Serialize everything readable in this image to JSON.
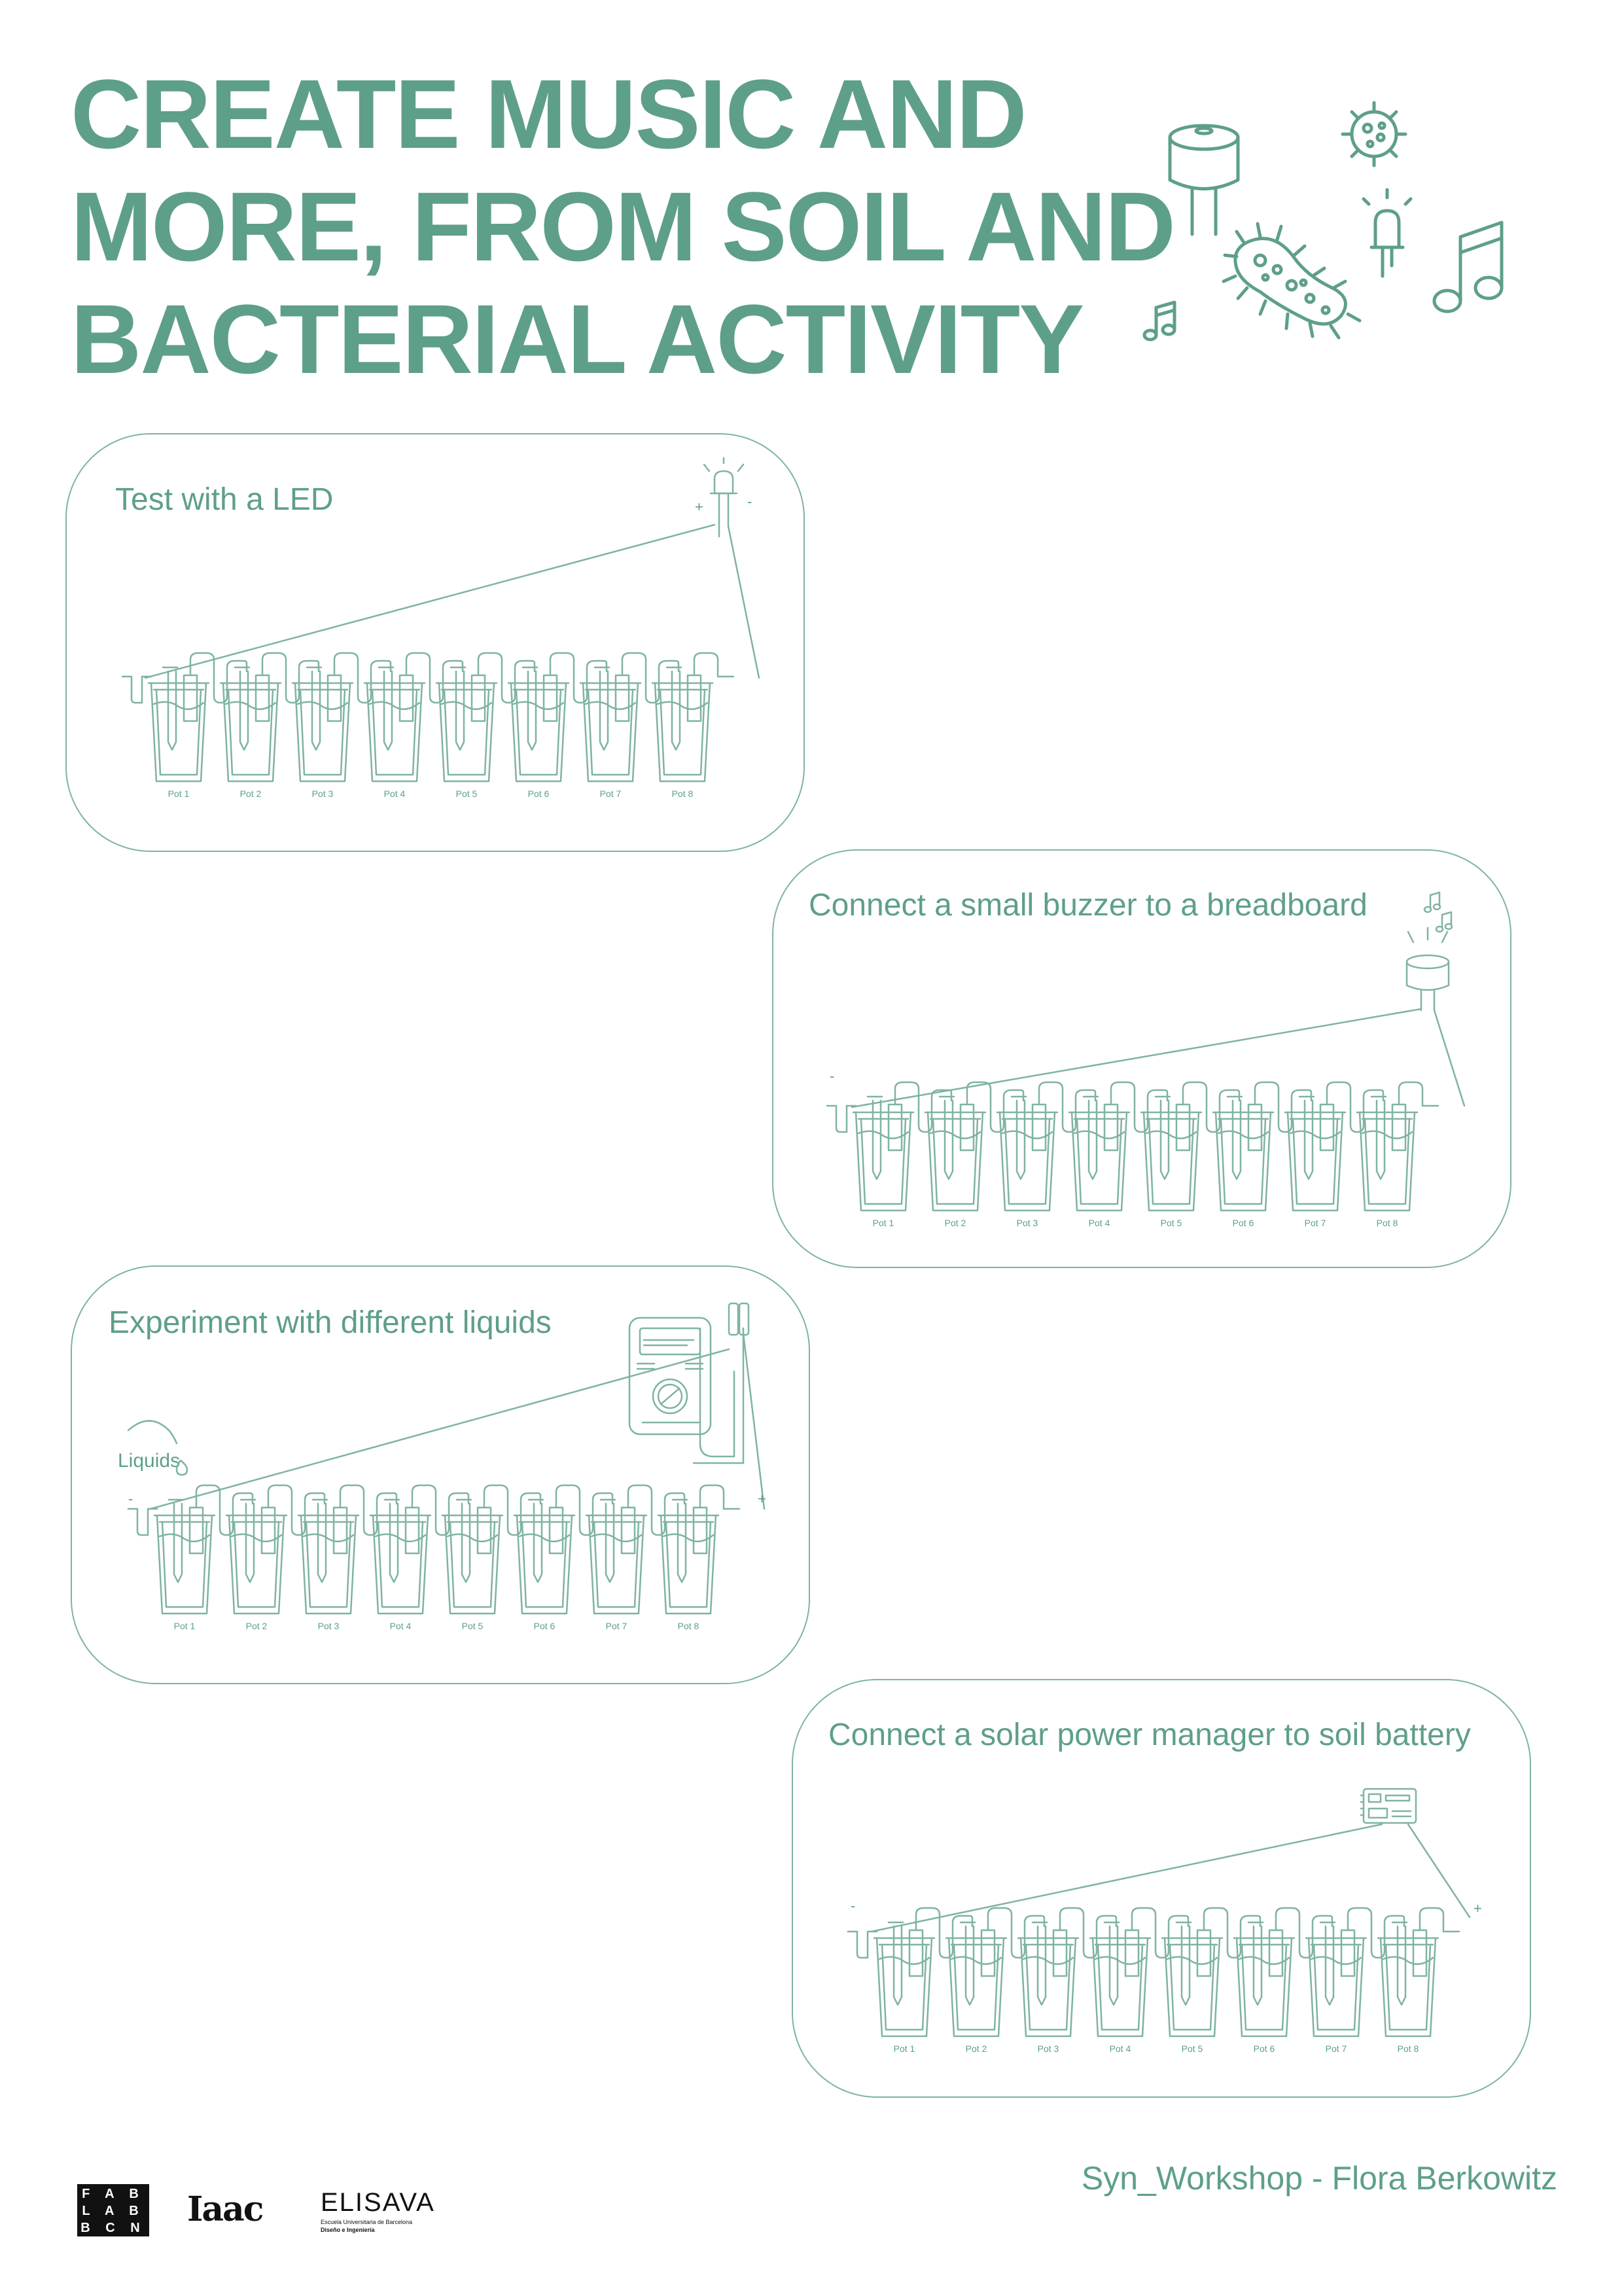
{
  "title": {
    "line1": "CREATE MUSIC AND",
    "line2": "MORE, FROM SOIL AND",
    "line3": "BACTERIAL ACTIVITY"
  },
  "colors": {
    "accent": "#5e9f8a",
    "line": "#7fb3a2",
    "logo": "#111111"
  },
  "hero_icons": [
    "buzzer-icon",
    "virus-icon",
    "led-icon",
    "music-note-icon",
    "bacteria-icon",
    "music-note-small-icon"
  ],
  "cards": [
    {
      "title": "Test with a LED",
      "device": "led",
      "minus": "-",
      "plus": "+"
    },
    {
      "title": "Connect a small buzzer to a breadboard",
      "device": "buzzer",
      "minus": "-",
      "plus": "+"
    },
    {
      "title": "Experiment with different liquids",
      "device": "multimeter",
      "minus": "-",
      "plus": "+",
      "liquids_label": "Liquids"
    },
    {
      "title": "Connect a solar power manager to soil battery",
      "device": "solar-power-manager",
      "minus": "-",
      "plus": "+"
    }
  ],
  "pots": [
    "Pot 1",
    "Pot 2",
    "Pot 3",
    "Pot 4",
    "Pot 5",
    "Pot 6",
    "Pot 7",
    "Pot 8"
  ],
  "footer": {
    "credit": "Syn_Workshop - Flora Berkowitz",
    "logos": {
      "fablab": [
        "F A B",
        "L A B",
        "B C N"
      ],
      "iaac": "Iaac",
      "elisava": "ELISAVA",
      "elisava_sub1": "Escuela Universitaria de Barcelona",
      "elisava_sub2": "Diseño e Ingeniería"
    }
  }
}
